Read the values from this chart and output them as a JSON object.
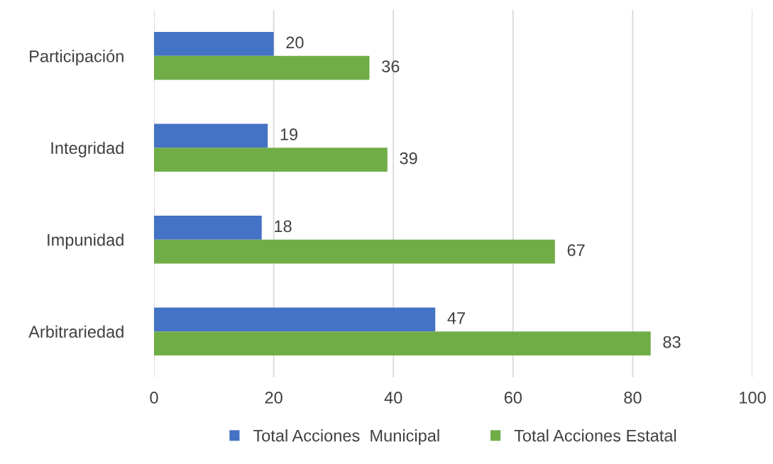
{
  "chart_data": {
    "type": "bar",
    "orientation": "horizontal",
    "categories": [
      "Participación",
      "Integridad",
      "Impunidad",
      "Arbitrariedad"
    ],
    "series": [
      {
        "name": "Total Acciones  Municipal",
        "color": "#4472c4",
        "values": [
          20,
          19,
          18,
          47
        ]
      },
      {
        "name": "Total Acciones Estatal",
        "color": "#70ad47",
        "values": [
          36,
          39,
          67,
          83
        ]
      }
    ],
    "xlim": [
      0,
      100
    ],
    "xticks": [
      0,
      20,
      40,
      60,
      80,
      100
    ],
    "grid": "x",
    "legend": "bottom",
    "data_labels": true
  }
}
